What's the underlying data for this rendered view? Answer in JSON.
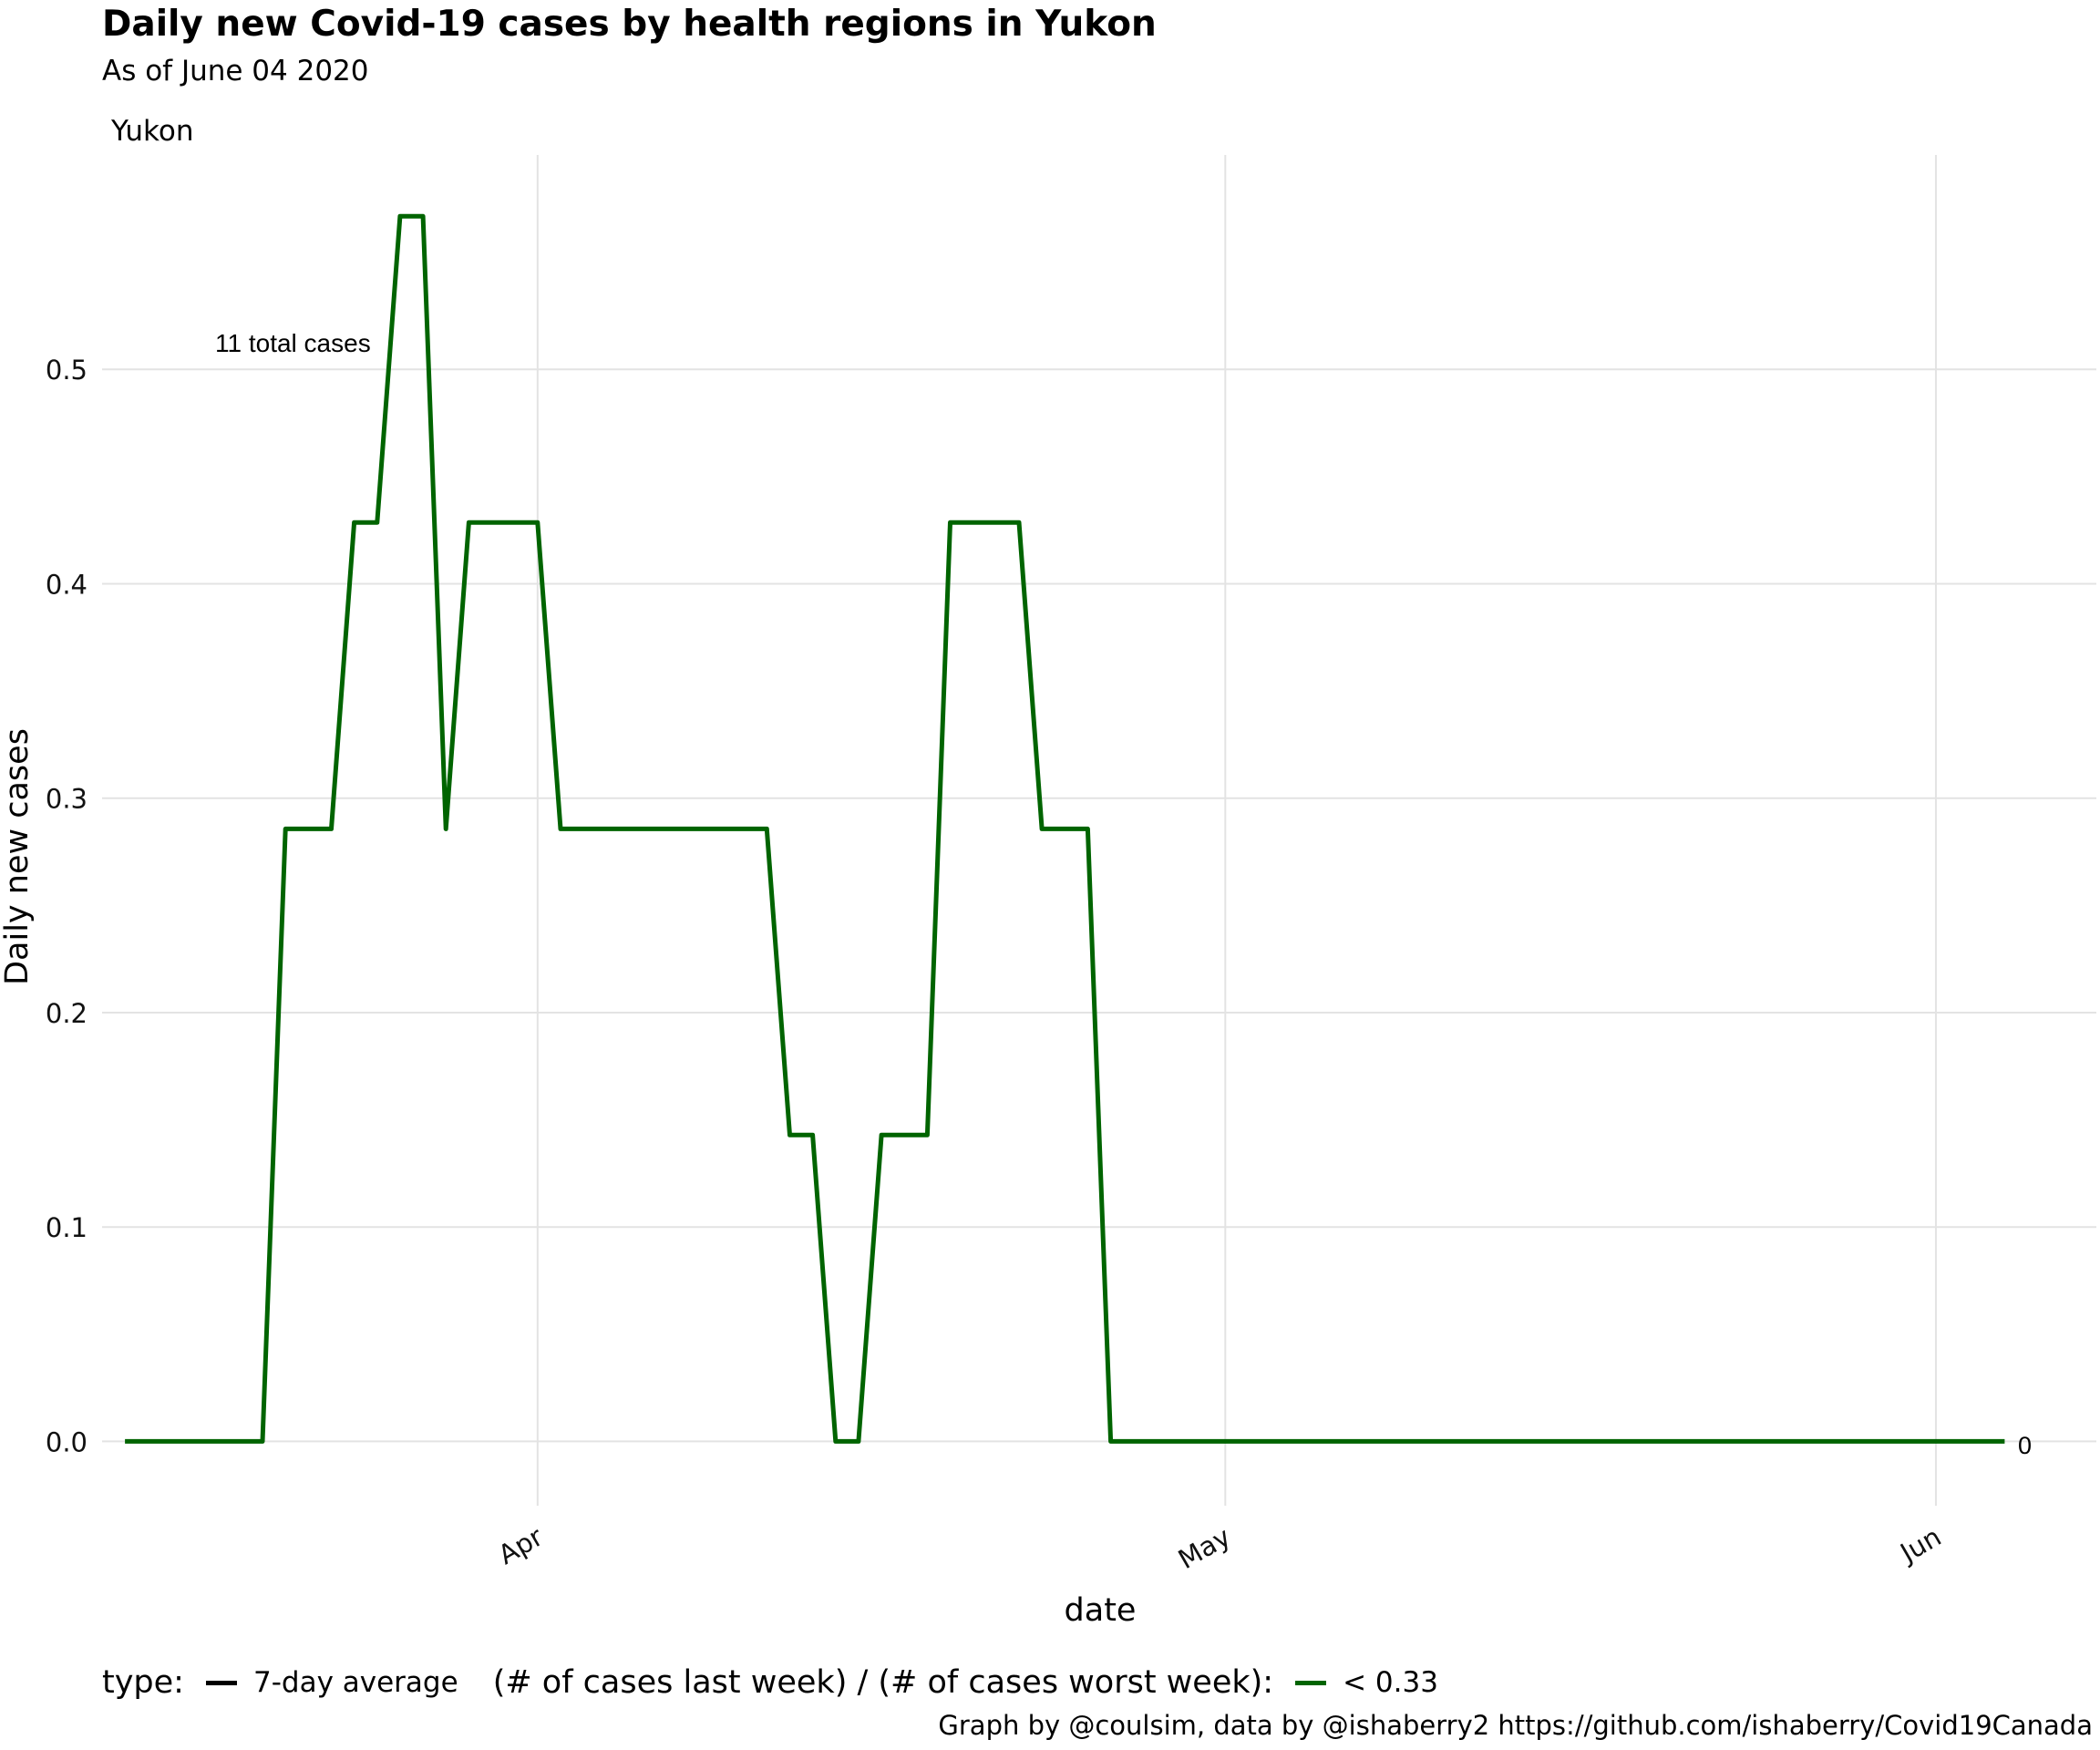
{
  "header": {
    "title": "Daily new Covid-19 cases by health regions in Yukon",
    "subtitle": "As of June 04 2020",
    "facet_label": "Yukon"
  },
  "legend": {
    "type_label": "type:",
    "type_item": "7-day average",
    "ratio_label": "(# of cases last week) / (# of cases worst week):",
    "ratio_item": "< 0.33",
    "type_color": "#000000",
    "ratio_color": "#006400"
  },
  "caption": "Graph by @coulsim, data by @ishaberry2 https://github.com/ishaberry/Covid19Canada",
  "chart_data": {
    "type": "line",
    "title": "Daily new Covid-19 cases by health regions in Yukon",
    "subtitle": "As of June 04 2020",
    "xlabel": "date",
    "ylabel": "Daily new cases",
    "x_ticks": [
      {
        "label": "Apr",
        "date": "2020-04-01"
      },
      {
        "label": "May",
        "date": "2020-05-01"
      },
      {
        "label": "Jun",
        "date": "2020-06-01"
      }
    ],
    "y_ticks": [
      "0.0",
      "0.1",
      "0.2",
      "0.3",
      "0.4",
      "0.5"
    ],
    "xlim": [
      "2020-03-13",
      "2020-06-08"
    ],
    "ylim": [
      -0.03,
      0.6
    ],
    "grid": true,
    "legend_position": "bottom",
    "annotations": {
      "total": "11 total cases",
      "end_value": "0"
    },
    "series": [
      {
        "color": "#006400",
        "points": [
          {
            "x": "2020-03-14",
            "y": 0
          },
          {
            "x": "2020-03-20",
            "y": 0
          },
          {
            "x": "2020-03-21",
            "y": 0.2857
          },
          {
            "x": "2020-03-23",
            "y": 0.2857
          },
          {
            "x": "2020-03-24",
            "y": 0.4286
          },
          {
            "x": "2020-03-25",
            "y": 0.4286
          },
          {
            "x": "2020-03-26",
            "y": 0.5714
          },
          {
            "x": "2020-03-27",
            "y": 0.5714
          },
          {
            "x": "2020-03-28",
            "y": 0.2857
          },
          {
            "x": "2020-03-29",
            "y": 0.4286
          },
          {
            "x": "2020-04-01",
            "y": 0.4286
          },
          {
            "x": "2020-04-02",
            "y": 0.2857
          },
          {
            "x": "2020-04-11",
            "y": 0.2857
          },
          {
            "x": "2020-04-12",
            "y": 0.1429
          },
          {
            "x": "2020-04-13",
            "y": 0.1429
          },
          {
            "x": "2020-04-14",
            "y": 0
          },
          {
            "x": "2020-04-15",
            "y": 0
          },
          {
            "x": "2020-04-16",
            "y": 0.1429
          },
          {
            "x": "2020-04-18",
            "y": 0.1429
          },
          {
            "x": "2020-04-19",
            "y": 0.4286
          },
          {
            "x": "2020-04-22",
            "y": 0.4286
          },
          {
            "x": "2020-04-23",
            "y": 0.2857
          },
          {
            "x": "2020-04-25",
            "y": 0.2857
          },
          {
            "x": "2020-04-26",
            "y": 0
          },
          {
            "x": "2020-06-04",
            "y": 0
          }
        ]
      }
    ]
  }
}
